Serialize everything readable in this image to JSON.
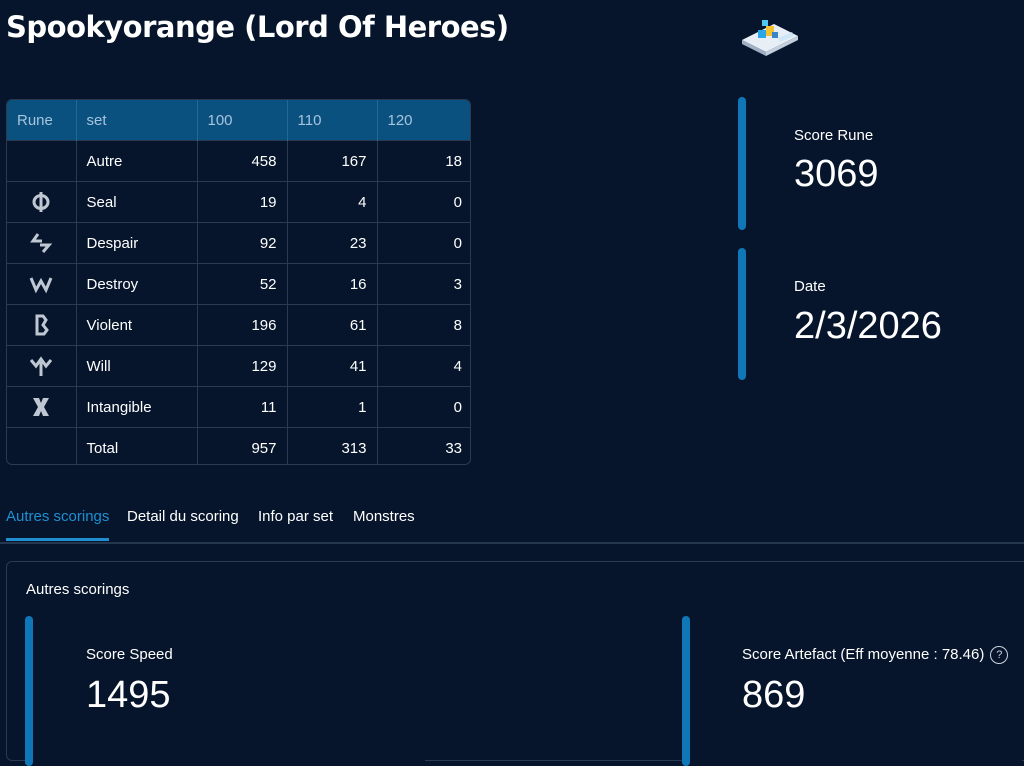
{
  "page": {
    "title": "Spookyorange (Lord Of Heroes)"
  },
  "rune_table": {
    "headers": [
      "Rune",
      "set",
      "100",
      "110",
      "120"
    ],
    "rows": [
      {
        "icon": "",
        "set": "Autre",
        "v100": "458",
        "v110": "167",
        "v120": "18"
      },
      {
        "icon": "seal-rune-icon",
        "set": "Seal",
        "v100": "19",
        "v110": "4",
        "v120": "0"
      },
      {
        "icon": "despair-rune-icon",
        "set": "Despair",
        "v100": "92",
        "v110": "23",
        "v120": "0"
      },
      {
        "icon": "destroy-rune-icon",
        "set": "Destroy",
        "v100": "52",
        "v110": "16",
        "v120": "3"
      },
      {
        "icon": "violent-rune-icon",
        "set": "Violent",
        "v100": "196",
        "v110": "61",
        "v120": "8"
      },
      {
        "icon": "will-rune-icon",
        "set": "Will",
        "v100": "129",
        "v110": "41",
        "v120": "4"
      },
      {
        "icon": "intangible-rune-icon",
        "set": "Intangible",
        "v100": "11",
        "v110": "1",
        "v120": "0"
      },
      {
        "icon": "",
        "set": "Total",
        "v100": "957",
        "v110": "313",
        "v120": "33"
      }
    ]
  },
  "score_rune": {
    "label": "Score Rune",
    "value": "3069"
  },
  "date": {
    "label": "Date",
    "value": "2/3/2026"
  },
  "tabs": [
    {
      "label": "Autres scorings",
      "active": true
    },
    {
      "label": "Detail du scoring",
      "active": false
    },
    {
      "label": "Info par set",
      "active": false
    },
    {
      "label": "Monstres",
      "active": false
    }
  ],
  "panel": {
    "title": "Autres scorings",
    "score_speed": {
      "label": "Score Speed",
      "value": "1495"
    },
    "score_artefact": {
      "label": "Score Artefact (Eff moyenne : 78.46)",
      "value": "869",
      "help_icon": "?"
    }
  },
  "colors": {
    "background": "#06152b",
    "accent": "#0f77b8",
    "tab_active": "#1f8fd1",
    "table_header": "#0a5180"
  }
}
